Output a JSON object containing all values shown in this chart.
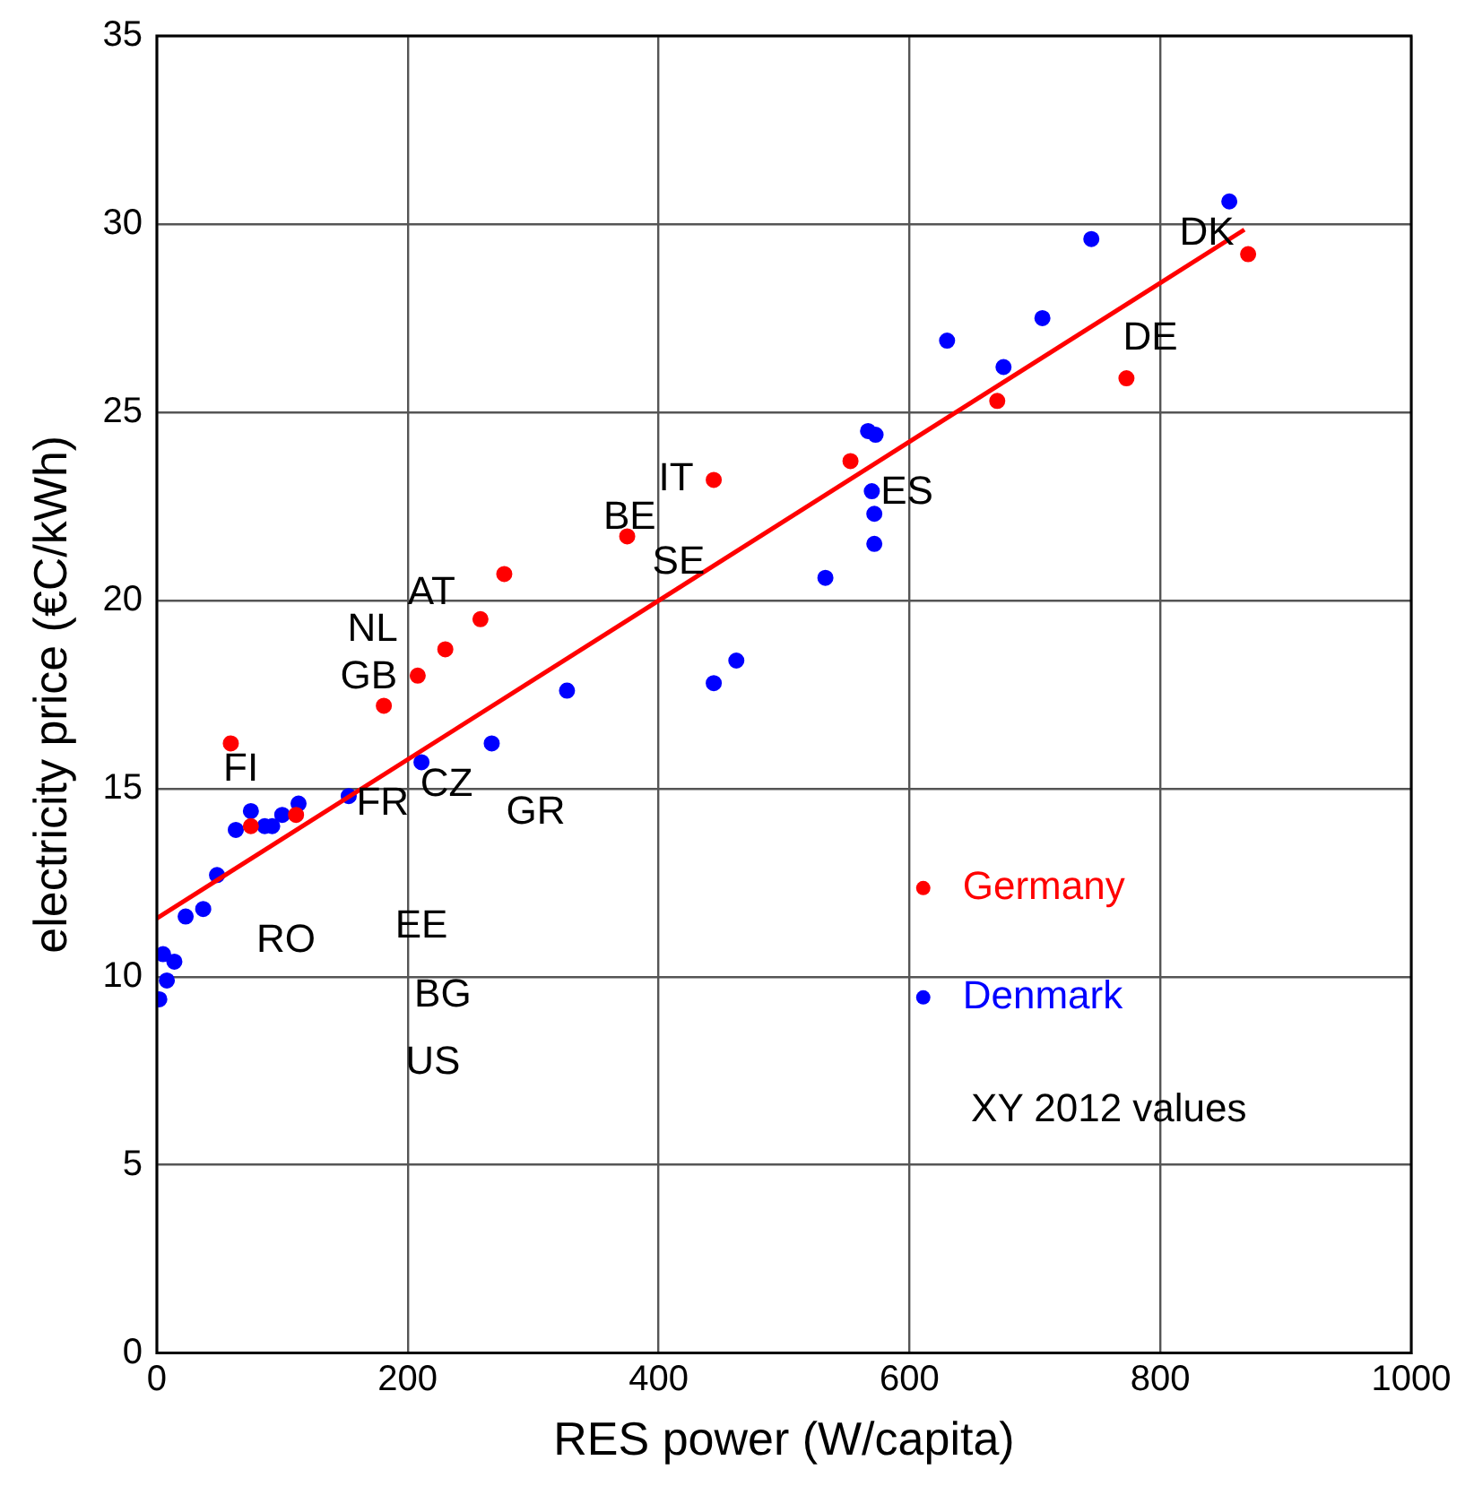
{
  "chart_data": {
    "type": "scatter",
    "xlabel": "RES power (W/capita)",
    "ylabel": "electricity price (€C/kWh)",
    "xlim": [
      0,
      1000
    ],
    "xticks": [
      0,
      200,
      400,
      600,
      800,
      1000
    ],
    "ylim": [
      0,
      35
    ],
    "yticks": [
      0,
      5,
      10,
      15,
      20,
      25,
      30,
      35
    ],
    "grid": true,
    "legend": "bottom right",
    "marker": "circle",
    "series": [
      {
        "name": "Germany",
        "color": "#ff0000",
        "x": [
          59,
          75,
          111,
          181,
          208,
          230,
          258,
          277,
          375,
          444,
          553,
          670,
          773,
          870
        ],
        "values": [
          16.2,
          14.0,
          14.3,
          17.2,
          18.0,
          18.7,
          19.5,
          20.7,
          21.7,
          23.2,
          23.7,
          25.3,
          25.9,
          29.2
        ]
      },
      {
        "name": "Denmark",
        "color": "#0000ff",
        "x": [
          2,
          5,
          8,
          14,
          23,
          37,
          48,
          63,
          75,
          86,
          92,
          100,
          113,
          153,
          211,
          267,
          327,
          444,
          462,
          533,
          572,
          572,
          570,
          567,
          573,
          630,
          675,
          706,
          745,
          855
        ],
        "values": [
          9.4,
          10.6,
          9.9,
          10.4,
          11.6,
          11.8,
          12.7,
          13.9,
          14.4,
          14.0,
          14.0,
          14.3,
          14.6,
          14.8,
          15.7,
          16.2,
          17.6,
          17.8,
          18.4,
          20.6,
          21.5,
          22.3,
          22.9,
          24.5,
          24.4,
          26.9,
          26.2,
          27.5,
          29.6,
          30.6
        ]
      },
      {
        "type": "line",
        "color": "#ff0000",
        "marker": "none",
        "x": [
          0,
          867
        ],
        "values": [
          11.55,
          29.85
        ]
      }
    ],
    "annotations": [
      "FI",
      "FR",
      "CZ",
      "GR",
      "RO",
      "EE",
      "BG",
      "US",
      "GB",
      "NL",
      "AT",
      "BE",
      "IT",
      "SE",
      "ES",
      "DE",
      "DK",
      "XY 2012 values"
    ]
  }
}
